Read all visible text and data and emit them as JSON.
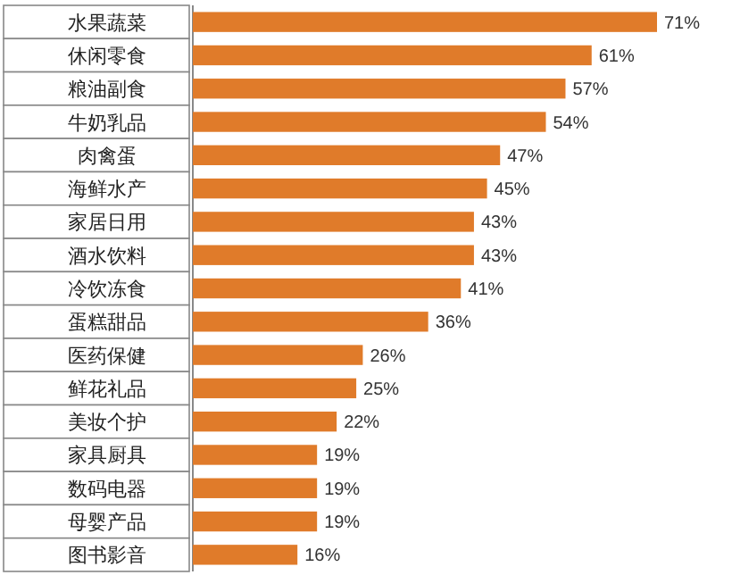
{
  "chart_data": {
    "type": "bar",
    "orientation": "horizontal",
    "color": "#e07b2a",
    "categories": [
      "水果蔬菜",
      "休闲零食",
      "粮油副食",
      "牛奶乳品",
      "肉禽蛋",
      "海鲜水产",
      "家居日用",
      "酒水饮料",
      "冷饮冻食",
      "蛋糕甜品",
      "医药保健",
      "鲜花礼品",
      "美妆个护",
      "家具厨具",
      "数码电器",
      "母婴产品",
      "图书影音"
    ],
    "values": [
      71,
      61,
      57,
      54,
      47,
      45,
      43,
      43,
      41,
      36,
      26,
      25,
      22,
      19,
      19,
      19,
      16
    ],
    "value_labels": [
      "71%",
      "61%",
      "57%",
      "54%",
      "47%",
      "45%",
      "43%",
      "43%",
      "41%",
      "36%",
      "26%",
      "25%",
      "22%",
      "19%",
      "19%",
      "19%",
      "16%"
    ]
  }
}
